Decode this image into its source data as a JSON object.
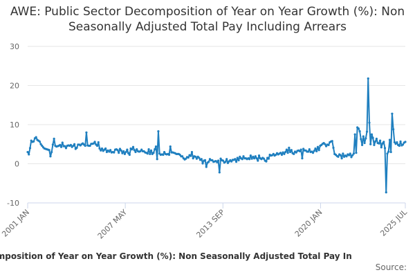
{
  "chart_data": {
    "type": "line",
    "title": "AWE: Public Sector Decomposition of Year on Year Growth (%): Non Seasonally Adjusted Total Pay Including Arrears",
    "xlabel": "",
    "ylabel": "",
    "legend": "ector Decomposition of Year on Year Growth (%): Non Seasonally Adjusted Total Pay In",
    "source": "Source:",
    "ylim": [
      -10,
      30
    ],
    "yticks": [
      -10,
      0,
      10,
      20,
      30
    ],
    "xticks": [
      "2001 JAN",
      "2007 MAY",
      "2013 SEP",
      "2020 JAN",
      "2025 JUL"
    ],
    "start": "2001-01",
    "end": "2025-07",
    "grid": true,
    "color": "#1f7fbf",
    "series": [
      {
        "values": [
          3.0,
          2.4,
          4.0,
          5.9,
          5.6,
          5.7,
          6.5,
          6.8,
          6.1,
          5.9,
          5.7,
          5.0,
          4.6,
          4.2,
          3.9,
          3.8,
          3.7,
          3.6,
          3.5,
          1.9,
          3.0,
          4.9,
          6.4,
          4.6,
          4.4,
          4.5,
          4.6,
          4.8,
          4.3,
          5.4,
          4.5,
          4.5,
          4.0,
          4.6,
          4.7,
          4.6,
          4.8,
          4.3,
          4.6,
          5.0,
          3.8,
          4.1,
          4.9,
          4.9,
          4.7,
          5.0,
          5.2,
          4.9,
          4.6,
          8.0,
          4.7,
          4.6,
          4.6,
          5.1,
          5.1,
          5.2,
          5.6,
          4.9,
          4.6,
          5.5,
          3.9,
          3.4,
          3.9,
          3.3,
          3.6,
          3.9,
          3.0,
          3.4,
          3.1,
          3.5,
          2.9,
          3.0,
          2.9,
          3.6,
          3.7,
          3.5,
          2.8,
          3.8,
          3.4,
          2.7,
          3.2,
          2.5,
          3.0,
          3.6,
          2.7,
          2.3,
          3.9,
          3.7,
          4.3,
          3.5,
          3.0,
          3.7,
          3.2,
          3.1,
          3.2,
          3.6,
          3.2,
          3.2,
          2.9,
          2.8,
          2.6,
          3.7,
          2.5,
          3.4,
          2.5,
          2.8,
          3.7,
          4.4,
          1.2,
          8.3,
          2.6,
          2.3,
          2.4,
          2.3,
          3.0,
          2.5,
          2.4,
          2.5,
          2.3,
          4.4,
          2.9,
          2.9,
          2.8,
          2.7,
          2.5,
          2.5,
          2.5,
          2.3,
          1.9,
          1.9,
          1.4,
          1.1,
          1.3,
          1.7,
          1.6,
          2.2,
          2.0,
          3.0,
          1.4,
          1.9,
          1.8,
          1.3,
          1.8,
          1.5,
          1.0,
          1.2,
          0.1,
          0.8,
          0.9,
          -0.8,
          0.3,
          0.5,
          1.2,
          0.9,
          0.9,
          0.5,
          0.6,
          0.7,
          0.4,
          0.8,
          -2.2,
          1.3,
          0.9,
          0.8,
          0.3,
          0.5,
          1.2,
          0.2,
          0.6,
          0.9,
          0.6,
          1.0,
          1.0,
          1.2,
          0.5,
          1.5,
          0.9,
          1.8,
          1.4,
          1.2,
          1.9,
          1.4,
          1.4,
          1.2,
          1.4,
          1.2,
          2.1,
          1.3,
          1.8,
          1.4,
          1.9,
          1.4,
          0.8,
          2.1,
          1.4,
          1.2,
          1.5,
          1.3,
          0.8,
          0.6,
          1.5,
          1.3,
          2.3,
          2.1,
          2.2,
          2.5,
          2.1,
          2.3,
          2.7,
          2.4,
          2.6,
          2.8,
          2.3,
          2.9,
          2.5,
          3.0,
          3.6,
          2.8,
          4.1,
          3.0,
          3.5,
          2.7,
          2.5,
          3.1,
          2.9,
          3.3,
          3.4,
          3.2,
          3.6,
          1.4,
          3.8,
          3.4,
          3.4,
          3.1,
          3.1,
          3.7,
          3.0,
          3.1,
          2.8,
          3.3,
          3.9,
          3.2,
          4.3,
          3.5,
          4.6,
          4.8,
          5.1,
          5.3,
          5.0,
          4.5,
          4.9,
          4.8,
          5.5,
          5.7,
          5.8,
          4.1,
          2.5,
          2.3,
          2.0,
          1.8,
          2.4,
          2.2,
          1.4,
          2.6,
          1.8,
          2.1,
          1.9,
          2.4,
          2.2,
          2.6,
          1.7,
          2.2,
          2.6,
          7.5,
          2.8,
          9.3,
          9.0,
          8.3,
          6.3,
          4.8,
          7.0,
          5.3,
          6.5,
          8.2,
          21.8,
          10.5,
          5.0,
          7.5,
          6.6,
          4.8,
          5.7,
          6.4,
          5.3,
          5.2,
          5.9,
          4.2,
          5.2,
          5.6,
          4.0,
          -7.3,
          2.6,
          3.1,
          6.1,
          3.0,
          12.8,
          8.8,
          5.5,
          5.1,
          5.5,
          4.8,
          4.6,
          5.7,
          4.7,
          4.9,
          5.4,
          5.6
        ]
      }
    ]
  }
}
